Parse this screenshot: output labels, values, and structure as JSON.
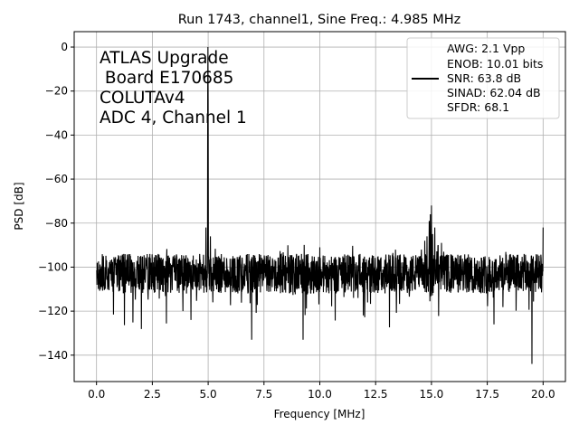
{
  "chart_data": {
    "type": "line",
    "title": "Run 1743, channel1, Sine Freq.: 4.985 MHz",
    "xlabel": "Frequency [MHz]",
    "ylabel": "PSD [dB]",
    "xlim": [
      -1.0,
      21.0
    ],
    "ylim": [
      -152,
      7
    ],
    "xticks": [
      0.0,
      2.5,
      5.0,
      7.5,
      10.0,
      12.5,
      15.0,
      17.5,
      20.0
    ],
    "xtick_labels": [
      "0.0",
      "2.5",
      "5.0",
      "7.5",
      "10.0",
      "12.5",
      "15.0",
      "17.5",
      "20.0"
    ],
    "yticks": [
      0,
      -20,
      -40,
      -60,
      -80,
      -100,
      -120,
      -140
    ],
    "ytick_labels": [
      "0",
      "−20",
      "−40",
      "−60",
      "−80",
      "−100",
      "−120",
      "−140"
    ],
    "grid": true,
    "legend_position": "top-right",
    "series": [
      {
        "color": "#000000",
        "noise_floor_db": -103,
        "x": [
          0.0,
          4.985,
          5.0,
          15.0,
          19.5,
          20.0
        ],
        "y": [
          -103,
          0,
          -101,
          -72,
          -144,
          -82
        ]
      }
    ],
    "annotation_lines": [
      "ATLAS Upgrade",
      " Board E170685",
      "COLUTAv4",
      "ADC 4, Channel 1"
    ],
    "legend_lines": [
      "AWG: 2.1 Vpp",
      "ENOB: 10.01 bits",
      "SNR: 63.8 dB",
      "SINAD: 62.04 dB",
      "SFDR: 68.1"
    ]
  }
}
